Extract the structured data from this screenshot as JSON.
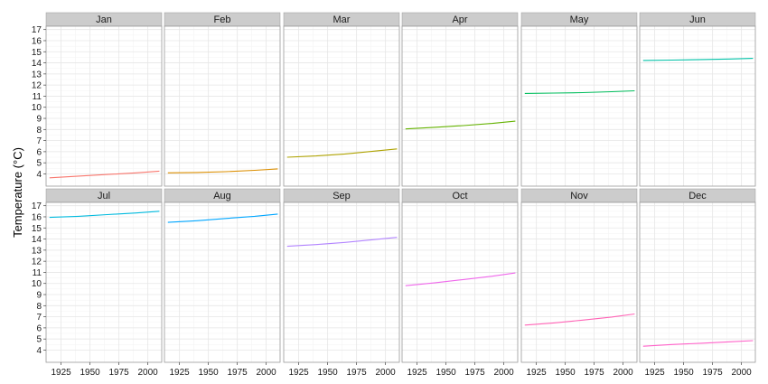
{
  "chart_data": {
    "type": "line",
    "facet_layout": "2 rows x 6 columns",
    "ylabel": "Temperature (°C)",
    "xlabel": "",
    "xlim": [
      1912,
      2012
    ],
    "ylim": [
      2.9,
      17.3
    ],
    "x_ticks": [
      1925,
      1950,
      1975,
      2000
    ],
    "y_ticks": [
      4,
      5,
      6,
      7,
      8,
      9,
      10,
      11,
      12,
      13,
      14,
      15,
      16,
      17
    ],
    "grid": true,
    "panels": [
      {
        "name": "Jan",
        "color": "#F8766D",
        "x": [
          1915,
          1940,
          1965,
          1990,
          2010
        ],
        "y": [
          3.65,
          3.8,
          3.95,
          4.1,
          4.25
        ]
      },
      {
        "name": "Feb",
        "color": "#DB8E00",
        "x": [
          1915,
          1940,
          1965,
          1990,
          2010
        ],
        "y": [
          4.1,
          4.13,
          4.2,
          4.32,
          4.45
        ]
      },
      {
        "name": "Mar",
        "color": "#AEA200",
        "x": [
          1915,
          1940,
          1965,
          1990,
          2010
        ],
        "y": [
          5.5,
          5.62,
          5.8,
          6.05,
          6.25
        ]
      },
      {
        "name": "Apr",
        "color": "#64B200",
        "x": [
          1915,
          1940,
          1965,
          1990,
          2010
        ],
        "y": [
          8.05,
          8.2,
          8.35,
          8.55,
          8.75
        ]
      },
      {
        "name": "May",
        "color": "#00BD5C",
        "x": [
          1915,
          1940,
          1965,
          1990,
          2010
        ],
        "y": [
          11.25,
          11.28,
          11.32,
          11.4,
          11.48
        ]
      },
      {
        "name": "Jun",
        "color": "#00C1A7",
        "x": [
          1915,
          1940,
          1965,
          1990,
          2010
        ],
        "y": [
          14.22,
          14.25,
          14.3,
          14.35,
          14.4
        ]
      },
      {
        "name": "Jul",
        "color": "#00BADE",
        "x": [
          1915,
          1940,
          1965,
          1990,
          2010
        ],
        "y": [
          15.95,
          16.05,
          16.2,
          16.35,
          16.5
        ]
      },
      {
        "name": "Aug",
        "color": "#00A6FF",
        "x": [
          1915,
          1940,
          1965,
          1990,
          2010
        ],
        "y": [
          15.5,
          15.65,
          15.85,
          16.05,
          16.25
        ]
      },
      {
        "name": "Sep",
        "color": "#B385FF",
        "x": [
          1915,
          1940,
          1965,
          1990,
          2010
        ],
        "y": [
          13.35,
          13.5,
          13.7,
          13.95,
          14.15
        ]
      },
      {
        "name": "Oct",
        "color": "#EF67EB",
        "x": [
          1915,
          1940,
          1965,
          1990,
          2010
        ],
        "y": [
          9.8,
          10.05,
          10.35,
          10.65,
          10.95
        ]
      },
      {
        "name": "Nov",
        "color": "#FF63B6",
        "x": [
          1915,
          1940,
          1965,
          1990,
          2010
        ],
        "y": [
          6.25,
          6.45,
          6.7,
          6.98,
          7.25
        ]
      },
      {
        "name": "Dec",
        "color": "#FF61C9",
        "x": [
          1915,
          1940,
          1965,
          1990,
          2010
        ],
        "y": [
          4.35,
          4.5,
          4.62,
          4.75,
          4.85
        ]
      }
    ]
  }
}
